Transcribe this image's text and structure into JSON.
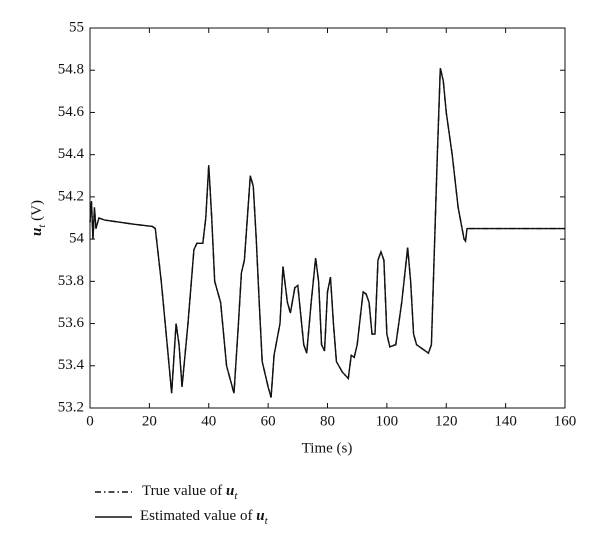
{
  "chart_data": {
    "type": "line",
    "xlabel": "Time (s)",
    "ylabel": [
      "u",
      "t",
      " (V)"
    ],
    "x": [
      0,
      0.5,
      1,
      1.5,
      2,
      3,
      5,
      10,
      15,
      21,
      22,
      24,
      26,
      27.5,
      29,
      30,
      31,
      33,
      35,
      36,
      38,
      39,
      40,
      41,
      42,
      44,
      46,
      48.5,
      50,
      51,
      52,
      54,
      55,
      56,
      57,
      58,
      60,
      61,
      62,
      64,
      65,
      66.5,
      67.5,
      69,
      70,
      72,
      73,
      74.5,
      76,
      77,
      78,
      79,
      80,
      81,
      82,
      83,
      85,
      87,
      88,
      89,
      90,
      92,
      93,
      94,
      95,
      96,
      97,
      98,
      99,
      100,
      101,
      103,
      105,
      107,
      108,
      109,
      110,
      112,
      114,
      115,
      117,
      118,
      119,
      120,
      122,
      124,
      126,
      126.5,
      127,
      130,
      160
    ],
    "series": [
      {
        "name": [
          "True value of ",
          "u",
          "t"
        ],
        "color": "#111111",
        "dash": "dashdot",
        "values": [
          54.08,
          54.18,
          54.0,
          54.15,
          54.05,
          54.1,
          54.09,
          54.08,
          54.07,
          54.06,
          54.05,
          53.8,
          53.5,
          53.27,
          53.6,
          53.5,
          53.3,
          53.6,
          53.95,
          53.98,
          53.98,
          54.1,
          54.35,
          54.1,
          53.8,
          53.7,
          53.4,
          53.27,
          53.6,
          53.84,
          53.9,
          54.3,
          54.25,
          54.0,
          53.7,
          53.42,
          53.3,
          53.25,
          53.45,
          53.6,
          53.87,
          53.7,
          53.65,
          53.77,
          53.78,
          53.5,
          53.46,
          53.7,
          53.91,
          53.8,
          53.5,
          53.47,
          53.75,
          53.82,
          53.6,
          53.42,
          53.37,
          53.34,
          53.45,
          53.44,
          53.5,
          53.75,
          53.74,
          53.7,
          53.55,
          53.55,
          53.9,
          53.94,
          53.9,
          53.55,
          53.49,
          53.5,
          53.7,
          53.96,
          53.8,
          53.55,
          53.5,
          53.48,
          53.46,
          53.5,
          54.4,
          54.81,
          54.75,
          54.6,
          54.4,
          54.15,
          54.0,
          53.99,
          54.05,
          54.05,
          54.05
        ]
      },
      {
        "name": [
          "Estimated value of ",
          "u",
          "t"
        ],
        "color": "#111111",
        "dash": "solid",
        "values": [
          54.08,
          54.18,
          54.0,
          54.15,
          54.05,
          54.1,
          54.09,
          54.08,
          54.07,
          54.06,
          54.05,
          53.8,
          53.5,
          53.27,
          53.6,
          53.5,
          53.3,
          53.6,
          53.95,
          53.98,
          53.98,
          54.1,
          54.35,
          54.1,
          53.8,
          53.7,
          53.4,
          53.27,
          53.6,
          53.84,
          53.9,
          54.3,
          54.25,
          54.0,
          53.7,
          53.42,
          53.3,
          53.25,
          53.45,
          53.6,
          53.87,
          53.7,
          53.65,
          53.77,
          53.78,
          53.5,
          53.46,
          53.7,
          53.91,
          53.8,
          53.5,
          53.47,
          53.75,
          53.82,
          53.6,
          53.42,
          53.37,
          53.34,
          53.45,
          53.44,
          53.5,
          53.75,
          53.74,
          53.7,
          53.55,
          53.55,
          53.9,
          53.94,
          53.9,
          53.55,
          53.49,
          53.5,
          53.7,
          53.96,
          53.8,
          53.55,
          53.5,
          53.48,
          53.46,
          53.5,
          54.4,
          54.81,
          54.75,
          54.6,
          54.4,
          54.15,
          54.0,
          53.99,
          54.05,
          54.05,
          54.05
        ]
      }
    ],
    "xlim": [
      0,
      160
    ],
    "xticks": [
      0,
      20,
      40,
      60,
      80,
      100,
      120,
      140,
      160
    ],
    "ylim": [
      53.2,
      55
    ],
    "yticks": [
      53.2,
      53.4,
      53.6,
      53.8,
      54,
      54.2,
      54.4,
      54.6,
      54.8,
      55
    ]
  }
}
